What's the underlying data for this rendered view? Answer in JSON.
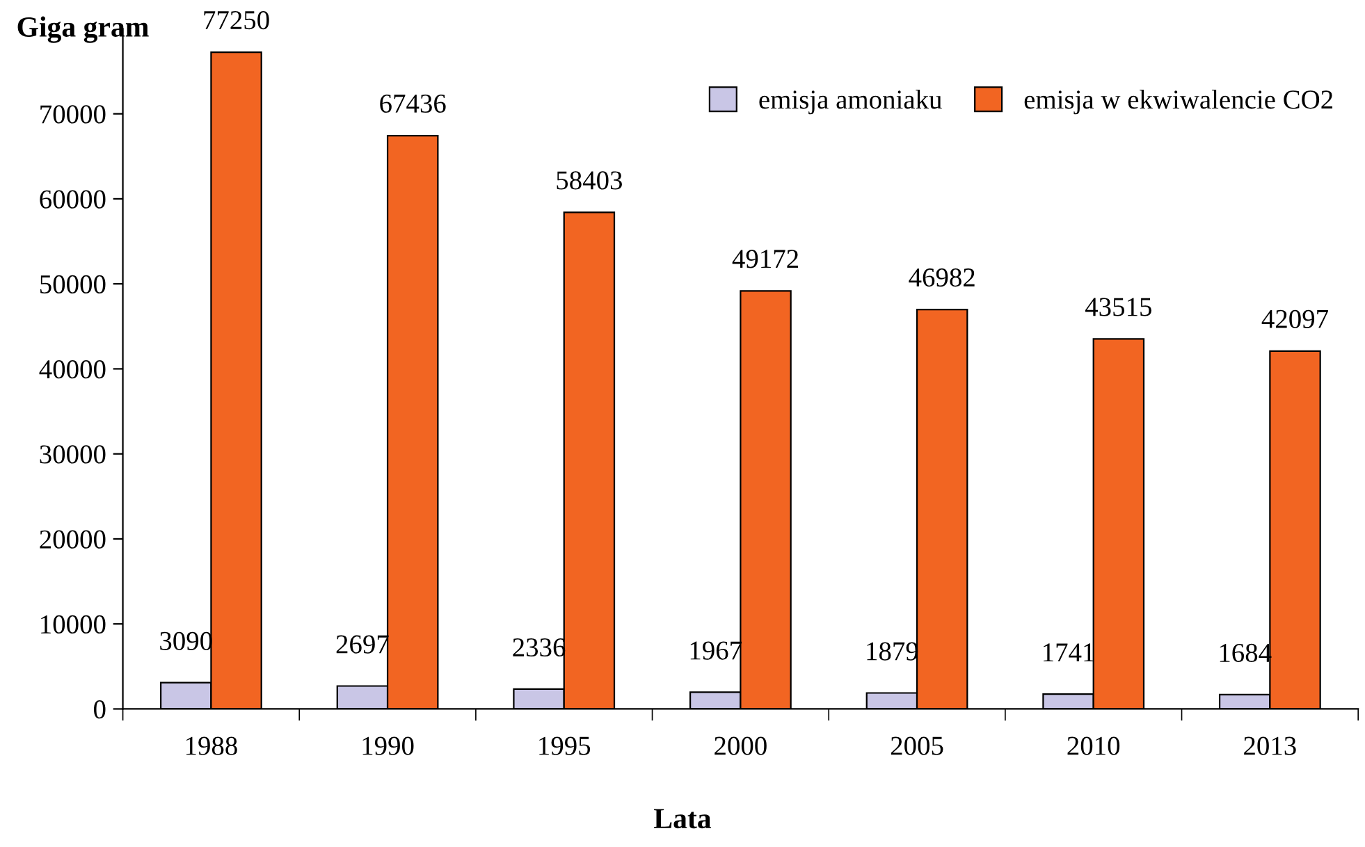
{
  "chart_data": {
    "type": "bar",
    "title": "Giga gram",
    "xlabel": "Lata",
    "categories": [
      "1988",
      "1990",
      "1995",
      "2000",
      "2005",
      "2010",
      "2013"
    ],
    "series": [
      {
        "name": "emisja amoniaku",
        "color": "#c9c6e6",
        "values": [
          3090,
          2697,
          2336,
          1967,
          1879,
          1741,
          1684
        ]
      },
      {
        "name": "emisja w ekwiwalencie CO2",
        "color": "#f26522",
        "values": [
          77250,
          67436,
          58403,
          49172,
          46982,
          43515,
          42097
        ]
      }
    ],
    "ylim": [
      0,
      80000
    ],
    "yticks": [
      0,
      10000,
      20000,
      30000,
      40000,
      50000,
      60000,
      70000
    ],
    "grid": false,
    "legend": "top right",
    "data_labels": true
  }
}
